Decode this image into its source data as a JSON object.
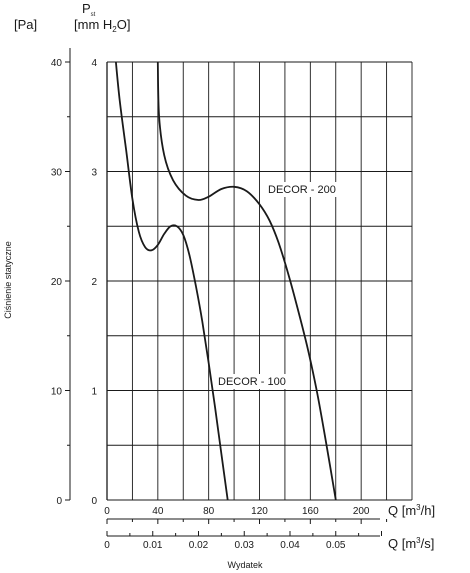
{
  "chart_data": {
    "type": "line",
    "ylabel": "Ciśnienie statyczne",
    "xlabel": "Wydatek",
    "y_unit_pa": "[Pa]",
    "y_unit_mmh2o_prefix": "[mm H",
    "y_unit_mmh2o_sub": "2",
    "y_unit_mmh2o_suffix": "O]",
    "p_symbol": "P",
    "p_subscript": "st",
    "x_unit_m3h_prefix": "Q [m",
    "x_unit_m3h_sup": "3",
    "x_unit_m3h_suffix": "/h]",
    "x_unit_m3s_prefix": "Q [m",
    "x_unit_m3s_sup": "3",
    "x_unit_m3s_suffix": "/s]",
    "xlim_m3h": [
      0,
      240
    ],
    "ylim_pa": [
      0,
      40
    ],
    "ylim_mmh2o": [
      0,
      4
    ],
    "pa_ticks": [
      "0",
      "10",
      "20",
      "30",
      "40"
    ],
    "mmh2o_ticks": [
      "0",
      "1",
      "2",
      "3",
      "4"
    ],
    "m3h_ticks": [
      "0",
      "40",
      "80",
      "120",
      "160",
      "200"
    ],
    "m3s_ticks": [
      "0",
      "0.01",
      "0.02",
      "0.03",
      "0.04",
      "0.05"
    ],
    "grid": true,
    "series": [
      {
        "name": "DECOR - 200",
        "x": [
          40,
          41,
          45,
          52,
          62,
          72,
          80,
          90,
          100,
          110,
          120,
          128,
          135,
          143,
          150,
          158,
          165,
          172,
          180
        ],
        "y": [
          40,
          35,
          31.5,
          29.2,
          27.8,
          27.4,
          27.7,
          28.4,
          28.6,
          28.2,
          27,
          25.5,
          23.5,
          20.5,
          17.5,
          13.8,
          10,
          5.5,
          0
        ]
      },
      {
        "name": "DECOR - 100",
        "x": [
          7,
          10,
          15,
          20,
          25,
          30,
          35,
          40,
          45,
          50,
          55,
          60,
          65,
          70,
          75,
          80,
          85,
          90,
          95
        ],
        "y": [
          40,
          36.5,
          32,
          27.5,
          24.5,
          23.1,
          22.8,
          23.3,
          24.3,
          25,
          25,
          24.2,
          22.3,
          19.5,
          16.3,
          12.5,
          8.5,
          4.2,
          0
        ]
      }
    ]
  }
}
